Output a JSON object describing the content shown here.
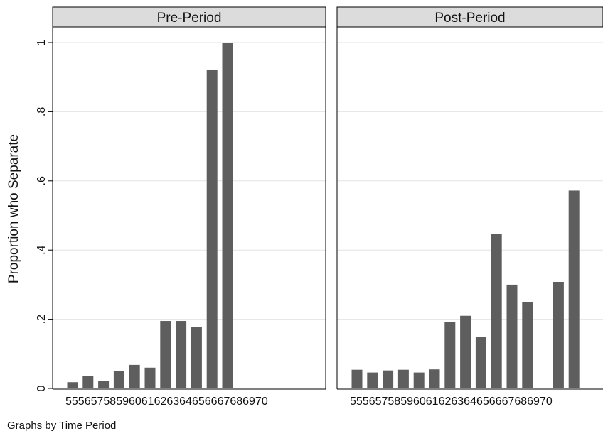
{
  "chart_data": {
    "type": "bar",
    "ylabel": "Proportion who Separate",
    "ylim": [
      0,
      1
    ],
    "yticks": [
      0,
      0.2,
      0.4,
      0.6,
      0.8,
      1
    ],
    "ytick_labels": [
      "0",
      ".2",
      ".4",
      ".6",
      ".8",
      "1"
    ],
    "grid": true,
    "bar_color": "#5e5e5e",
    "note": "Graphs by Time Period",
    "categories": [
      "55",
      "56",
      "57",
      "58",
      "59",
      "60",
      "61",
      "62",
      "63",
      "64",
      "65",
      "66",
      "67",
      "68",
      "69",
      "70"
    ],
    "panels": [
      {
        "title": "Pre-Period",
        "values": [
          0.018,
          0.035,
          0.022,
          0.05,
          0.068,
          0.06,
          0.195,
          0.195,
          0.178,
          0.922,
          1.0,
          null,
          null,
          null,
          null,
          null
        ]
      },
      {
        "title": "Post-Period",
        "values": [
          0.054,
          0.046,
          0.052,
          0.054,
          0.046,
          0.055,
          0.193,
          0.21,
          0.148,
          0.447,
          0.3,
          0.25,
          null,
          0.308,
          0.572,
          null
        ]
      }
    ]
  }
}
